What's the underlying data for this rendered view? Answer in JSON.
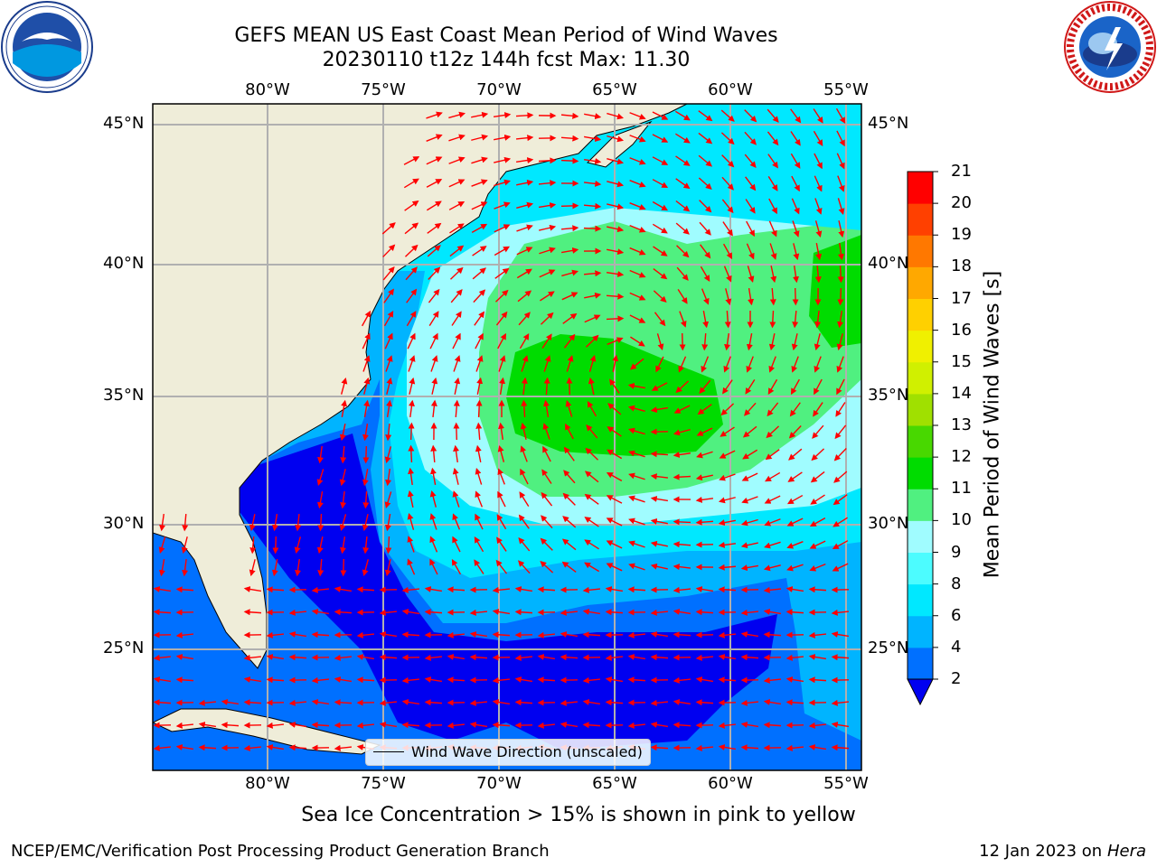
{
  "header": {
    "title_line1": "GEFS MEAN US East Coast Mean Period of Wind Waves",
    "title_line2": "20230110 t12z 144h fcst   Max: 11.30"
  },
  "logos": {
    "left": "noaa-logo",
    "right": "national-weather-service-logo"
  },
  "map": {
    "lon_labels": [
      "80°W",
      "75°W",
      "70°W",
      "65°W",
      "60°W",
      "55°W"
    ],
    "lat_labels": [
      "45°N",
      "40°N",
      "35°N",
      "30°N",
      "25°N"
    ],
    "legend_label": "Wind Wave Direction (unscaled)"
  },
  "colorbar": {
    "title": "Mean Period of Wind Waves [s]",
    "ticks": [
      "2",
      "4",
      "6",
      "8",
      "9",
      "10",
      "11",
      "12",
      "13",
      "14",
      "15",
      "16",
      "17",
      "18",
      "19",
      "20",
      "21"
    ],
    "colors": [
      "#0000f0",
      "#0070ff",
      "#00b4ff",
      "#00e8ff",
      "#4cfcff",
      "#a0fcff",
      "#50f080",
      "#00dc00",
      "#48d800",
      "#a0e000",
      "#d0f000",
      "#f0f000",
      "#ffd000",
      "#ffa800",
      "#ff7800",
      "#ff4000",
      "#ff0000"
    ],
    "below_color": "#0000f0"
  },
  "footer": {
    "caption": "Sea Ice Concentration > 15% is shown in pink to yellow",
    "left": "NCEP/EMC/Verification Post Processing Product Generation Branch",
    "right_date": "12 Jan 2023 on",
    "right_host": "Hera"
  },
  "style": {
    "land": "#efedd9",
    "gridline": "#b0b0b0",
    "arrow": "#ff0000"
  }
}
